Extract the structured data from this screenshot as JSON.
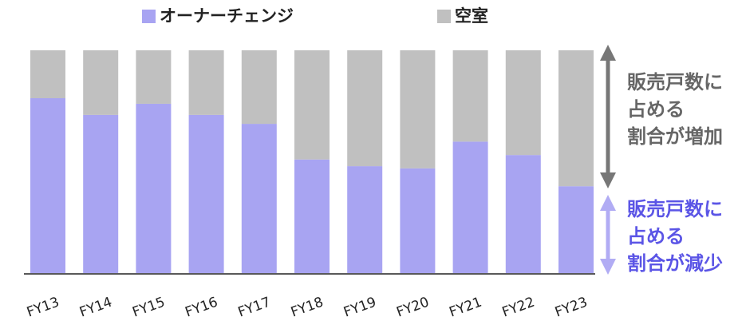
{
  "chart_data": {
    "type": "stacked_bar",
    "categories": [
      "FY13",
      "FY14",
      "FY15",
      "FY16",
      "FY17",
      "FY18",
      "FY19",
      "FY20",
      "FY21",
      "FY22",
      "FY23"
    ],
    "series": [
      {
        "name": "オーナーチェンジ",
        "color": "#a8a4f2",
        "values": [
          78.5,
          71,
          76,
          71,
          67,
          51,
          48,
          47,
          59,
          53,
          39
        ]
      },
      {
        "name": "空室",
        "color": "#c0c0c0",
        "values": [
          21.5,
          29,
          24,
          29,
          33,
          49,
          52,
          53,
          41,
          47,
          61
        ]
      }
    ],
    "ylim": [
      0,
      100
    ],
    "annotations": [
      {
        "lines": [
          "販売戸数に",
          "占める",
          "割合が増加"
        ],
        "color": "#666666"
      },
      {
        "lines": [
          "販売戸数に",
          "占める",
          "割合が減少"
        ],
        "color": "#5b55e6"
      }
    ]
  }
}
